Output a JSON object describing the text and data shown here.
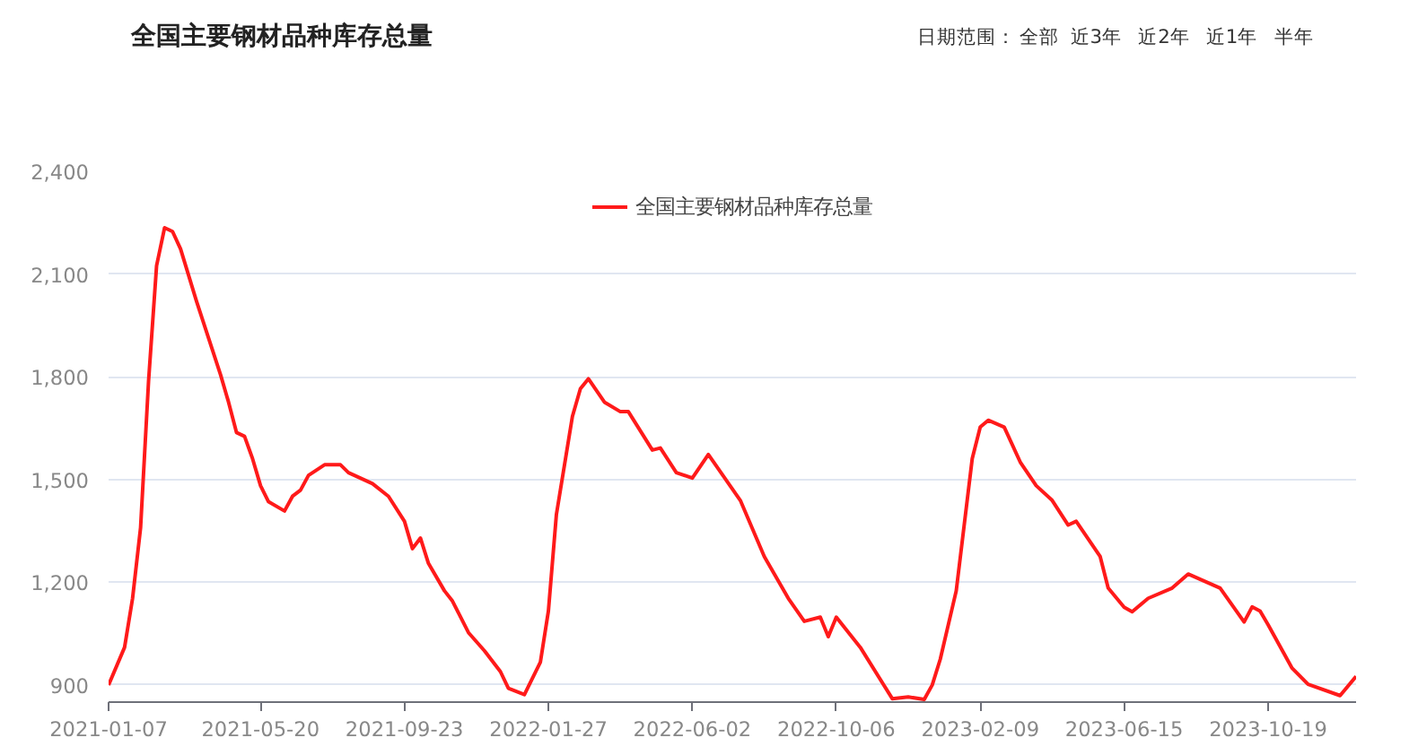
{
  "chart_data": {
    "type": "line",
    "title": "全国主要钢材品种库存总量",
    "annotations": [
      "日期范围：",
      "全部",
      "近3年",
      "近2年",
      "近1年",
      "半年"
    ],
    "x": [
      "2021-01-07",
      "2021-01-21",
      "2021-01-28",
      "2021-02-04",
      "2021-02-11",
      "2021-02-18",
      "2021-02-25",
      "2021-03-04",
      "2021-03-11",
      "2021-03-25",
      "2021-04-15",
      "2021-04-22",
      "2021-04-29",
      "2021-05-06",
      "2021-05-13",
      "2021-05-20",
      "2021-05-27",
      "2021-06-10",
      "2021-06-17",
      "2021-06-24",
      "2021-07-01",
      "2021-07-15",
      "2021-07-29",
      "2021-08-05",
      "2021-08-26",
      "2021-09-09",
      "2021-09-23",
      "2021-09-30",
      "2021-10-07",
      "2021-10-14",
      "2021-10-28",
      "2021-11-04",
      "2021-11-18",
      "2021-12-02",
      "2021-12-16",
      "2021-12-23",
      "2022-01-06",
      "2022-01-20",
      "2022-01-27",
      "2022-02-03",
      "2022-02-17",
      "2022-02-24",
      "2022-03-03",
      "2022-03-17",
      "2022-03-31",
      "2022-04-07",
      "2022-04-28",
      "2022-05-05",
      "2022-05-19",
      "2022-06-02",
      "2022-06-16",
      "2022-07-14",
      "2022-08-04",
      "2022-08-25",
      "2022-09-08",
      "2022-09-22",
      "2022-09-29",
      "2022-10-06",
      "2022-10-27",
      "2022-11-24",
      "2022-12-08",
      "2022-12-22",
      "2022-12-29",
      "2023-01-05",
      "2023-01-19",
      "2023-02-02",
      "2023-02-09",
      "2023-02-16",
      "2023-03-02",
      "2023-03-16",
      "2023-03-30",
      "2023-04-13",
      "2023-04-27",
      "2023-05-04",
      "2023-05-25",
      "2023-06-01",
      "2023-06-15",
      "2023-06-22",
      "2023-07-06",
      "2023-07-27",
      "2023-08-10",
      "2023-09-07",
      "2023-09-28",
      "2023-10-05",
      "2023-10-12",
      "2023-10-19",
      "2023-11-09",
      "2023-11-23",
      "2023-12-21",
      "2024-01-04"
    ],
    "series": [
      {
        "name": "全国主要钢材品种库存总量",
        "color": "#ff1a1a",
        "values": [
          900,
          1010,
          1153,
          1359,
          1788,
          2124,
          2235,
          2224,
          2173,
          2020,
          1806,
          1726,
          1637,
          1626,
          1561,
          1482,
          1435,
          1408,
          1451,
          1469,
          1512,
          1543,
          1543,
          1520,
          1488,
          1451,
          1378,
          1298,
          1329,
          1255,
          1175,
          1145,
          1053,
          1000,
          939,
          890,
          872,
          967,
          1116,
          1398,
          1684,
          1765,
          1794,
          1726,
          1698,
          1698,
          1586,
          1592,
          1520,
          1504,
          1573,
          1439,
          1275,
          1153,
          1086,
          1098,
          1041,
          1098,
          1010,
          860,
          865,
          858,
          900,
          975,
          1175,
          1561,
          1653,
          1673,
          1653,
          1551,
          1482,
          1439,
          1367,
          1378,
          1275,
          1183,
          1127,
          1114,
          1153,
          1183,
          1224,
          1183,
          1084,
          1128,
          1116,
          1076,
          949,
          902,
          869,
          925
        ]
      }
    ],
    "ylim": [
      850,
      2400
    ],
    "yticks": [
      900,
      {
        "value": 1200,
        "label": "1,200"
      },
      {
        "value": 1500,
        "label": "1,500"
      },
      {
        "value": 1800,
        "label": "1,800"
      },
      {
        "value": 2100,
        "label": "2,100"
      },
      {
        "value": 2400,
        "label": "2,400"
      }
    ],
    "xlim": [
      "2021-01-07",
      "2024-01-04"
    ],
    "xticks": [
      "2021-01-07",
      "2021-05-20",
      "2021-09-23",
      "2022-01-27",
      "2022-06-02",
      "2022-10-06",
      "2023-02-09",
      "2023-06-15",
      "2023-10-19"
    ],
    "grid": "y",
    "legend": "top",
    "line_style": "solid"
  }
}
